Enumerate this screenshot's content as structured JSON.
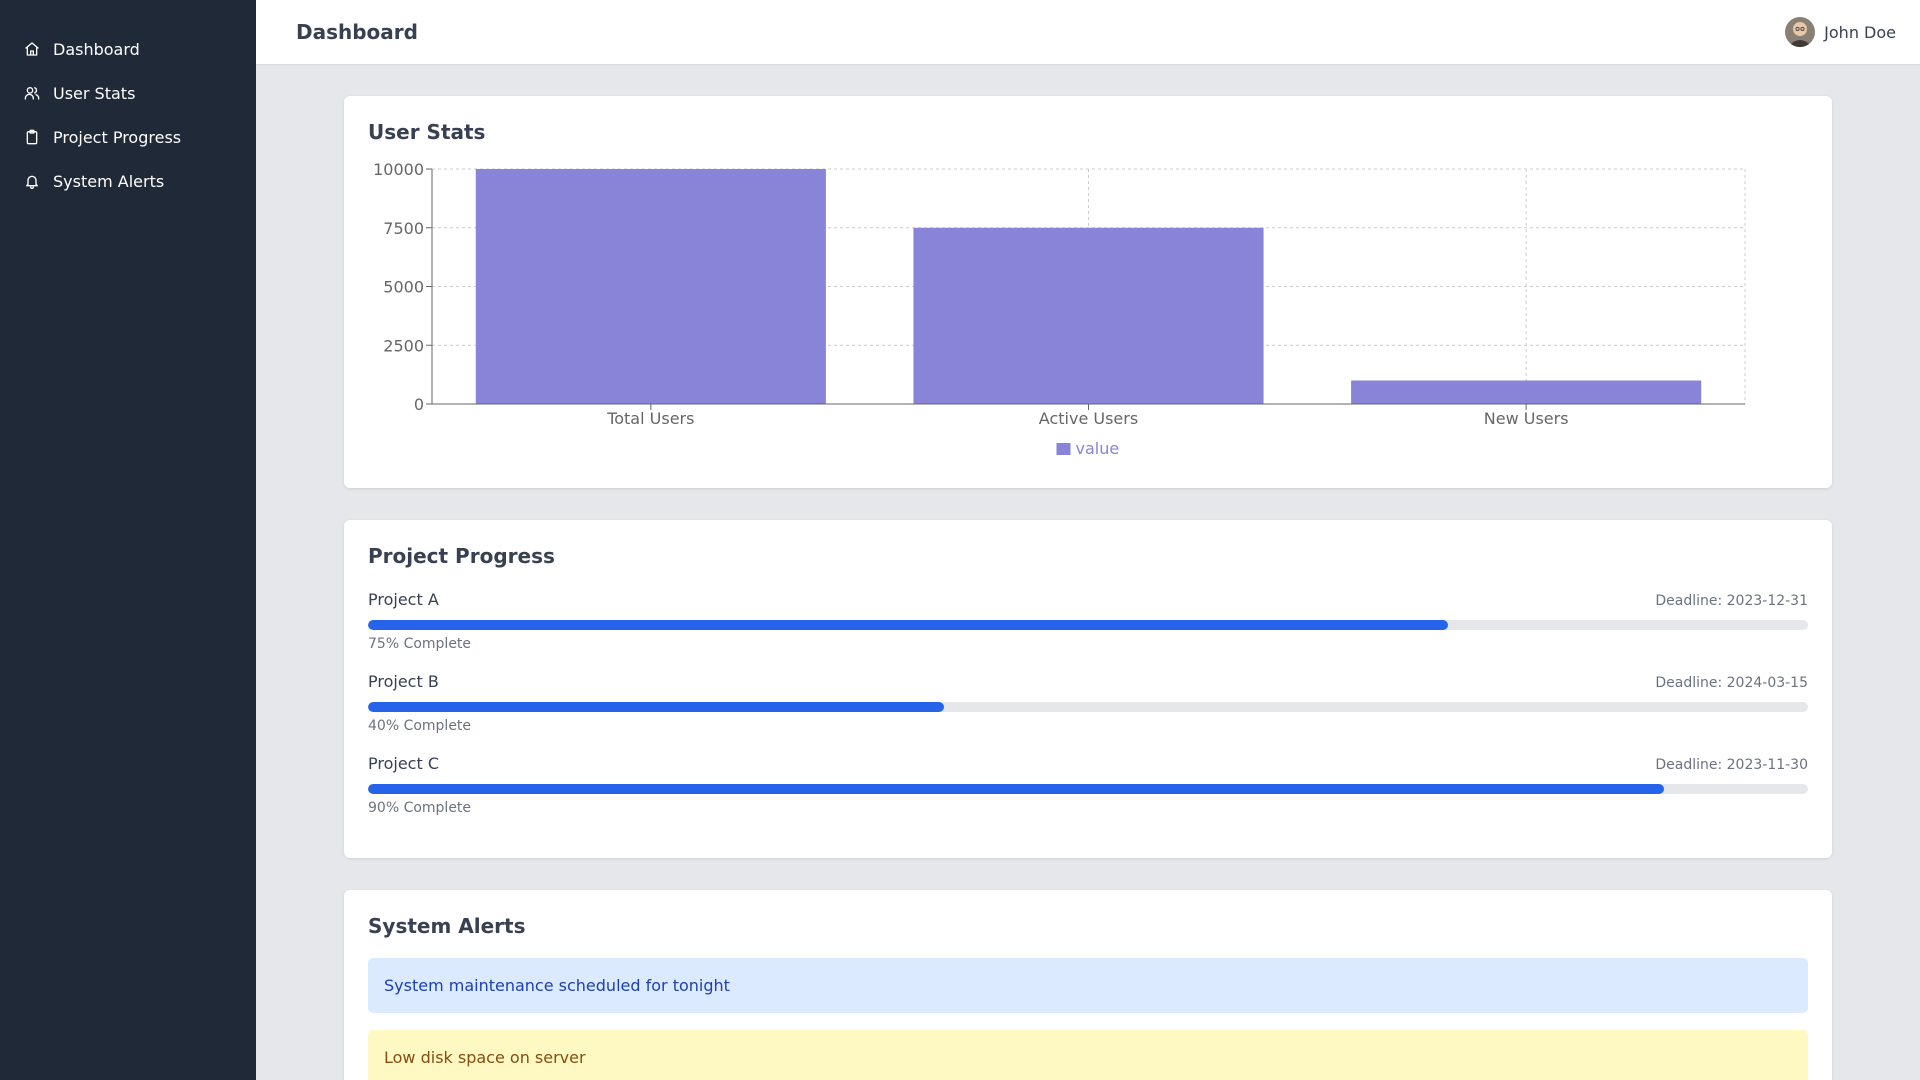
{
  "sidebar": {
    "items": [
      {
        "label": "Dashboard",
        "icon": "home-icon"
      },
      {
        "label": "User Stats",
        "icon": "users-icon"
      },
      {
        "label": "Project Progress",
        "icon": "clipboard-icon"
      },
      {
        "label": "System Alerts",
        "icon": "bell-icon"
      }
    ]
  },
  "header": {
    "title": "Dashboard",
    "user_name": "John Doe"
  },
  "user_stats": {
    "title": "User Stats"
  },
  "chart_data": {
    "type": "bar",
    "categories": [
      "Total Users",
      "Active Users",
      "New Users"
    ],
    "series": [
      {
        "name": "value",
        "values": [
          10000,
          7500,
          1000
        ]
      }
    ],
    "yticks": [
      "0",
      "2500",
      "5000",
      "7500",
      "10000"
    ],
    "ylim": [
      0,
      10000
    ],
    "grid": true,
    "legend": "bottom-center",
    "color": "#8884d8"
  },
  "project_progress": {
    "title": "Project Progress",
    "projects": [
      {
        "name": "Project A",
        "deadline": "Deadline: 2023-12-31",
        "progress": 75,
        "complete_label": "75% Complete"
      },
      {
        "name": "Project B",
        "deadline": "Deadline: 2024-03-15",
        "progress": 40,
        "complete_label": "40% Complete"
      },
      {
        "name": "Project C",
        "deadline": "Deadline: 2023-11-30",
        "progress": 90,
        "complete_label": "90% Complete"
      }
    ],
    "bar_color": "#2563eb"
  },
  "system_alerts": {
    "title": "System Alerts",
    "alerts": [
      {
        "message": "System maintenance scheduled for tonight",
        "type": "info",
        "bg": "#dbeafe",
        "color": "#1e40af"
      },
      {
        "message": "Low disk space on server",
        "type": "warning",
        "bg": "#fef9c3",
        "color": "#854d0e"
      }
    ]
  }
}
